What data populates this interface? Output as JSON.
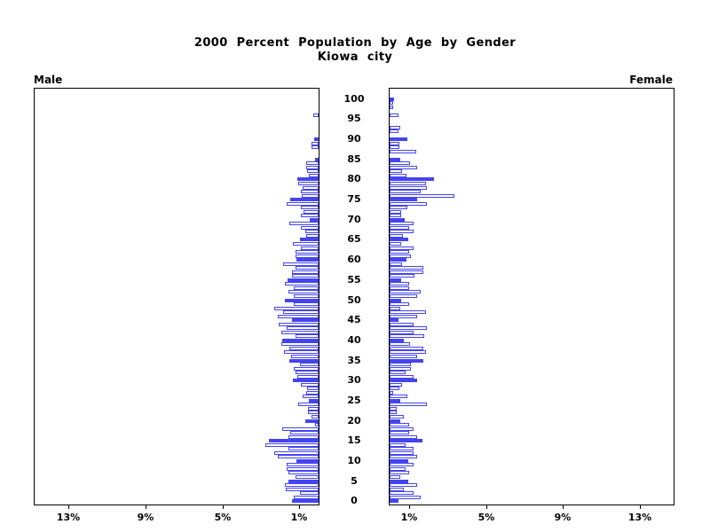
{
  "title": {
    "line1": "2000 Percent Population by Age by Gender",
    "line2": "Kiowa city"
  },
  "panels": {
    "male_label": "Male",
    "female_label": "Female"
  },
  "axis": {
    "male_tick_labels": [
      "13%",
      "9%",
      "5%",
      "1%"
    ],
    "male_tick_values": [
      13,
      9,
      5,
      1
    ],
    "female_tick_labels": [
      "1%",
      "5%",
      "9%",
      "13%"
    ],
    "female_tick_values": [
      1,
      5,
      9,
      13
    ],
    "age_tick_labels": [
      "0",
      "5",
      "10",
      "15",
      "20",
      "25",
      "30",
      "35",
      "40",
      "45",
      "50",
      "55",
      "60",
      "65",
      "70",
      "75",
      "80",
      "85",
      "90",
      "95",
      "100"
    ],
    "age_tick_values": [
      0,
      5,
      10,
      15,
      20,
      25,
      30,
      35,
      40,
      45,
      50,
      55,
      60,
      65,
      70,
      75,
      80,
      85,
      90,
      95,
      100
    ]
  },
  "colors": {
    "accent": "#4444ee",
    "open_bar_fill": "#ffffff",
    "axis": "#000000",
    "background": "#ffffff"
  },
  "chart_data": {
    "type": "bar",
    "variant": "population-pyramid",
    "title": "2000 Percent Population by Age by Gender",
    "subtitle": "Kiowa city",
    "x_axis_label_left": "Male",
    "x_axis_label_right": "Female",
    "value_unit": "percent of population",
    "axis_range_percent": [
      0,
      15
    ],
    "age_min": 0,
    "age_max": 100,
    "age_step": 1,
    "solid_bar_rule": "ages that are multiples of 5 are drawn solid blue; other ages are white with blue outline",
    "ages": [
      0,
      1,
      2,
      3,
      4,
      5,
      6,
      7,
      8,
      9,
      10,
      11,
      12,
      13,
      14,
      15,
      16,
      17,
      18,
      19,
      20,
      21,
      22,
      23,
      24,
      25,
      26,
      27,
      28,
      29,
      30,
      31,
      32,
      33,
      34,
      35,
      36,
      37,
      38,
      39,
      40,
      41,
      42,
      43,
      44,
      45,
      46,
      47,
      48,
      49,
      50,
      51,
      52,
      53,
      54,
      55,
      56,
      57,
      58,
      59,
      60,
      61,
      62,
      63,
      64,
      65,
      66,
      67,
      68,
      69,
      70,
      71,
      72,
      73,
      74,
      75,
      76,
      77,
      78,
      79,
      80,
      81,
      82,
      83,
      84,
      85,
      86,
      87,
      88,
      89,
      90,
      91,
      92,
      93,
      94,
      95,
      96,
      97,
      98,
      99,
      100
    ],
    "series": [
      {
        "name": "Male",
        "direction": "left",
        "values": [
          1.36,
          1.31,
          0.97,
          1.7,
          1.75,
          1.55,
          1.18,
          1.55,
          1.68,
          1.68,
          1.15,
          2.13,
          2.29,
          1.56,
          2.76,
          2.57,
          1.55,
          1.48,
          1.87,
          0.2,
          0.69,
          0.35,
          0.53,
          0.53,
          1.05,
          0.5,
          0.85,
          0.65,
          0.6,
          0.9,
          1.35,
          1.11,
          1.22,
          1.3,
          0.96,
          1.53,
          1.42,
          1.78,
          1.52,
          1.95,
          1.87,
          1.21,
          1.95,
          1.68,
          2.08,
          1.37,
          2.12,
          1.84,
          2.31,
          1.31,
          1.73,
          1.31,
          1.58,
          1.31,
          1.73,
          1.62,
          1.38,
          1.38,
          1.19,
          1.85,
          1.13,
          1.2,
          1.21,
          0.9,
          1.32,
          0.98,
          0.63,
          0.71,
          0.9,
          1.52,
          0.46,
          0.94,
          0.79,
          0.93,
          1.68,
          1.48,
          0.88,
          0.9,
          0.85,
          1.06,
          1.12,
          0.5,
          0.58,
          0.63,
          0.63,
          0.19,
          0,
          0,
          0.35,
          0.35,
          0.22,
          0,
          0,
          0,
          0,
          0,
          0.27,
          0,
          0,
          0,
          0
        ]
      },
      {
        "name": "Female",
        "direction": "right",
        "values": [
          0.46,
          1.6,
          1.23,
          0.72,
          1.41,
          0.95,
          0.57,
          1.03,
          0.83,
          1.23,
          0.95,
          1.41,
          1.23,
          1.23,
          0.83,
          1.72,
          1.41,
          1.03,
          1.23,
          1.03,
          0.57,
          0.72,
          0.37,
          0.37,
          1.94,
          0.57,
          0.92,
          0.2,
          0.5,
          0.65,
          1.43,
          1.23,
          0.81,
          1.09,
          1.09,
          1.75,
          1.43,
          1.9,
          1.76,
          1.06,
          0.73,
          1.78,
          1.26,
          1.92,
          1.25,
          0.45,
          1.43,
          1.9,
          0.55,
          1.03,
          0.58,
          1.43,
          1.59,
          1.03,
          1.03,
          0.58,
          1.3,
          1.74,
          1.74,
          0.65,
          0.89,
          1.12,
          1.01,
          1.23,
          0.58,
          0.97,
          0.69,
          1.23,
          1.01,
          1.23,
          0.78,
          0.62,
          0.62,
          0.92,
          1.95,
          1.45,
          3.35,
          1.59,
          1.93,
          1.9,
          2.29,
          0.89,
          0.65,
          1.43,
          1.04,
          0.53,
          0,
          1.4,
          0.5,
          0.5,
          0.92,
          0,
          0.44,
          0.55,
          0,
          0,
          0.44,
          0,
          0.17,
          0.17,
          0.23
        ]
      }
    ],
    "legend": "none",
    "grid": "off"
  }
}
